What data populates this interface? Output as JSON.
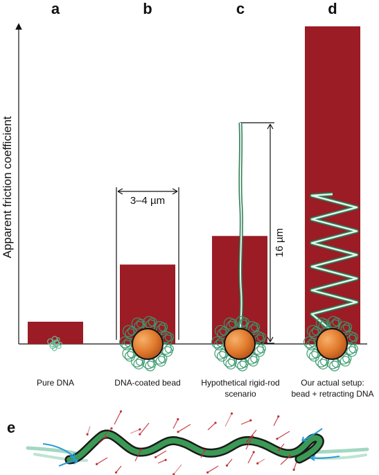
{
  "figure": {
    "y_axis_label": "Apparent friction coefficient",
    "panels": [
      {
        "letter": "a",
        "caption": [
          "Pure DNA"
        ],
        "relative_value": 0.07
      },
      {
        "letter": "b",
        "caption": [
          "DNA-coated bead"
        ],
        "relative_value": 0.25,
        "dimension_label": "3–4 µm"
      },
      {
        "letter": "c",
        "caption": [
          "Hypothetical rigid-rod",
          "scenario"
        ],
        "relative_value": 0.34,
        "dimension_label": "16 µm"
      },
      {
        "letter": "d",
        "caption": [
          "Our actual setup:",
          "bead + retracting DNA"
        ],
        "relative_value": 1.0
      }
    ],
    "panel_e_letter": "e"
  },
  "colors": {
    "bar": "#9b1c24",
    "bead": "#e07a2c",
    "dna_green": "#3a9a6e",
    "dna_light": "#8fd4b4",
    "force_arrows": "#c0303a",
    "flow_arrows": "#2a9ad6"
  }
}
